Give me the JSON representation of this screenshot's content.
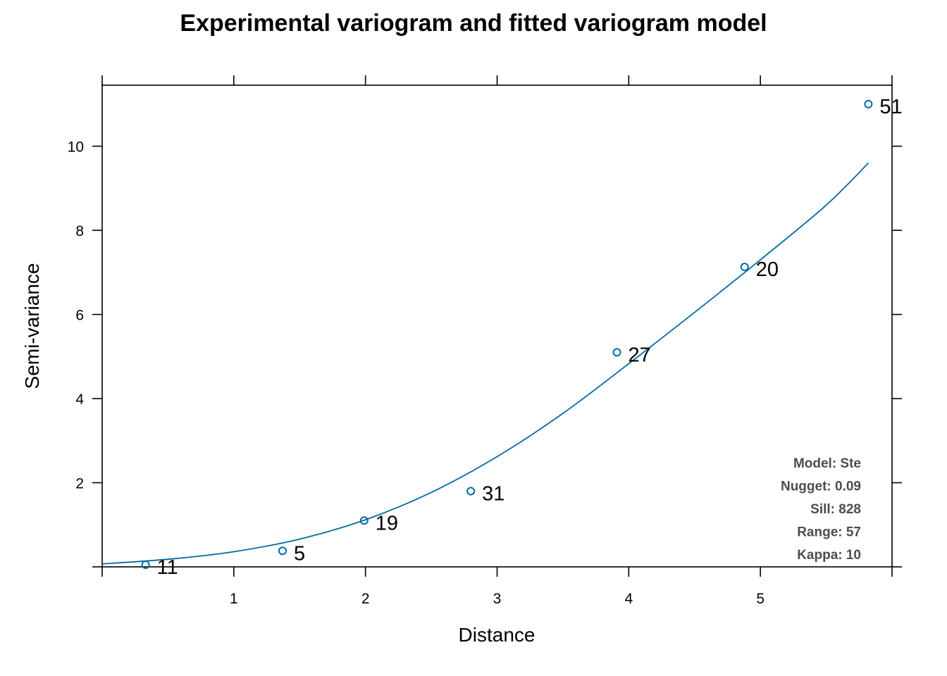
{
  "chart_data": {
    "type": "scatter",
    "title": "Experimental variogram and fitted variogram model",
    "xlabel": "Distance",
    "ylabel": "Semi-variance",
    "xlim": [
      0,
      6.0
    ],
    "ylim": [
      0,
      11.45
    ],
    "x_ticks": [
      1,
      2,
      3,
      4,
      5
    ],
    "y_ticks": [
      2,
      4,
      6,
      8,
      10
    ],
    "grid": false,
    "points": [
      {
        "x": 0.33,
        "y": 0.05,
        "label": "11"
      },
      {
        "x": 1.37,
        "y": 0.38,
        "label": "5"
      },
      {
        "x": 1.99,
        "y": 1.1,
        "label": "19"
      },
      {
        "x": 2.8,
        "y": 1.8,
        "label": "31"
      },
      {
        "x": 3.91,
        "y": 5.1,
        "label": "27"
      },
      {
        "x": 4.88,
        "y": 7.13,
        "label": "20"
      },
      {
        "x": 5.82,
        "y": 11.0,
        "label": "51"
      }
    ],
    "fitted_model": {
      "x": [
        0.0,
        0.5,
        1.0,
        1.5,
        2.0,
        2.5,
        3.0,
        3.5,
        4.0,
        4.5,
        5.0,
        5.5,
        5.82
      ],
      "y": [
        0.07,
        0.18,
        0.36,
        0.66,
        1.12,
        1.77,
        2.62,
        3.65,
        4.83,
        6.05,
        7.3,
        8.6,
        9.6
      ]
    },
    "model_info": [
      "Model: Ste",
      "Nugget: 0.09",
      "Sill: 828",
      "Range: 57",
      "Kappa: 10"
    ],
    "colors": {
      "points": "#006aa3",
      "model_line": "#006aa3",
      "info_text": "#4d4d4d",
      "axes": "#000000"
    }
  }
}
